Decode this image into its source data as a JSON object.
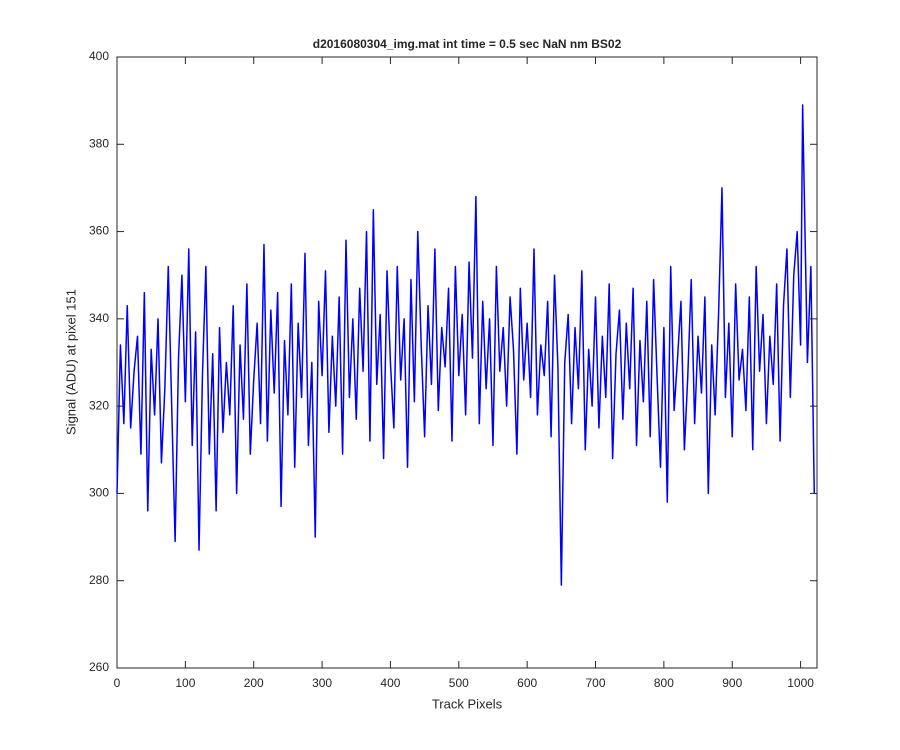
{
  "chart_data": {
    "type": "line",
    "title": "d2016080304_img.mat int time = 0.5 sec  NaN nm BS02",
    "xlabel": "Track Pixels",
    "ylabel": "Signal (ADU) at pixel 151",
    "xlim": [
      0,
      1024
    ],
    "ylim": [
      260,
      400
    ],
    "xticks": [
      0,
      100,
      200,
      300,
      400,
      500,
      600,
      700,
      800,
      900,
      1000
    ],
    "yticks": [
      260,
      280,
      300,
      320,
      340,
      360,
      380,
      400
    ],
    "grid": false,
    "series": [
      {
        "color": "#0000ff",
        "x": [
          0,
          5,
          10,
          15,
          20,
          25,
          30,
          35,
          40,
          45,
          50,
          55,
          60,
          65,
          70,
          75,
          80,
          85,
          90,
          95,
          100,
          105,
          110,
          115,
          120,
          125,
          130,
          135,
          140,
          145,
          150,
          155,
          160,
          165,
          170,
          175,
          180,
          185,
          190,
          195,
          200,
          205,
          210,
          215,
          220,
          225,
          230,
          235,
          240,
          245,
          250,
          255,
          260,
          265,
          270,
          275,
          280,
          285,
          290,
          295,
          300,
          305,
          310,
          315,
          320,
          325,
          330,
          335,
          340,
          345,
          350,
          355,
          360,
          365,
          370,
          375,
          380,
          385,
          390,
          395,
          400,
          405,
          410,
          415,
          420,
          425,
          430,
          435,
          440,
          445,
          450,
          455,
          460,
          465,
          470,
          475,
          480,
          485,
          490,
          495,
          500,
          505,
          510,
          515,
          520,
          525,
          530,
          535,
          540,
          545,
          550,
          555,
          560,
          565,
          570,
          575,
          580,
          585,
          590,
          595,
          600,
          605,
          610,
          615,
          620,
          625,
          630,
          635,
          640,
          645,
          650,
          655,
          660,
          665,
          670,
          675,
          680,
          685,
          690,
          695,
          700,
          705,
          710,
          715,
          720,
          725,
          730,
          735,
          740,
          745,
          750,
          755,
          760,
          765,
          770,
          775,
          780,
          785,
          790,
          795,
          800,
          805,
          810,
          815,
          820,
          825,
          830,
          835,
          840,
          845,
          850,
          855,
          860,
          865,
          870,
          875,
          880,
          885,
          890,
          895,
          900,
          905,
          910,
          915,
          920,
          925,
          930,
          935,
          940,
          945,
          950,
          955,
          960,
          965,
          970,
          975,
          980,
          985,
          990,
          995,
          1000,
          1003,
          1010,
          1015,
          1020
        ],
        "values": [
          300,
          334,
          316,
          343,
          315,
          328,
          336,
          309,
          346,
          296,
          333,
          318,
          340,
          307,
          324,
          352,
          320,
          289,
          331,
          350,
          321,
          356,
          311,
          337,
          287,
          327,
          352,
          309,
          332,
          296,
          338,
          314,
          330,
          318,
          343,
          300,
          334,
          317,
          348,
          309,
          326,
          339,
          316,
          357,
          312,
          342,
          323,
          346,
          297,
          335,
          318,
          348,
          306,
          339,
          322,
          355,
          311,
          330,
          290,
          344,
          327,
          351,
          314,
          336,
          320,
          345,
          309,
          358,
          322,
          340,
          317,
          347,
          328,
          360,
          312,
          365,
          325,
          341,
          308,
          351,
          330,
          315,
          352,
          326,
          340,
          306,
          349,
          321,
          360,
          334,
          313,
          343,
          325,
          356,
          319,
          338,
          329,
          347,
          312,
          352,
          327,
          341,
          318,
          353,
          331,
          368,
          316,
          344,
          324,
          340,
          311,
          352,
          328,
          338,
          320,
          345,
          333,
          309,
          347,
          326,
          339,
          322,
          356,
          318,
          334,
          327,
          344,
          313,
          350,
          329,
          279,
          330,
          341,
          316,
          338,
          324,
          351,
          310,
          333,
          320,
          345,
          315,
          336,
          322,
          348,
          308,
          332,
          342,
          317,
          339,
          324,
          347,
          311,
          335,
          321,
          344,
          313,
          349,
          327,
          306,
          338,
          298,
          352,
          319,
          331,
          344,
          310,
          327,
          349,
          316,
          336,
          323,
          345,
          300,
          334,
          318,
          341,
          370,
          322,
          339,
          313,
          348,
          326,
          333,
          319,
          345,
          310,
          352,
          328,
          341,
          316,
          336,
          325,
          348,
          312,
          343,
          356,
          322,
          350,
          360,
          334,
          389,
          330,
          352,
          300
        ]
      }
    ]
  }
}
